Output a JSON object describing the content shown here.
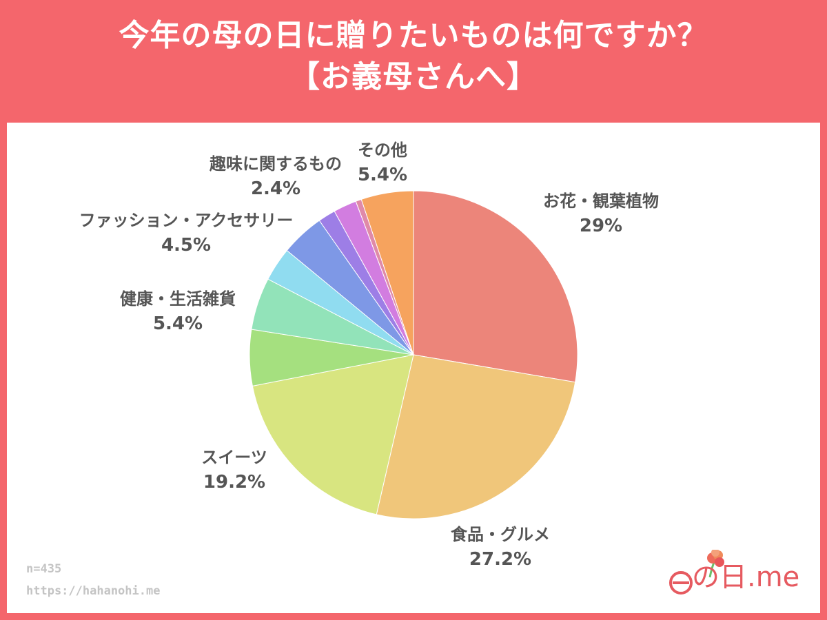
{
  "title_line1": "今年の母の日に贈りたいものは何ですか？",
  "title_line2": "【お義母さんへ】",
  "footer": {
    "n": "n=435",
    "url": "https://hahanohi.me"
  },
  "logo": {
    "text": "の日.me"
  },
  "colors": {
    "frame": "#f4666c",
    "panel": "#ffffff",
    "label": "#555555",
    "footer": "#c4c4c4",
    "logo": "#e65a60"
  },
  "chart_data": {
    "type": "pie",
    "slices": [
      {
        "label": "お花・観葉植物",
        "value_label": "29%",
        "value": 29,
        "color": "#ec857a"
      },
      {
        "label": "食品・グルメ",
        "value_label": "27.2%",
        "value": 27.2,
        "color": "#f0c67a"
      },
      {
        "label": "スイーツ",
        "value_label": "19.2%",
        "value": 19.2,
        "color": "#d8e580"
      },
      {
        "label": "",
        "value_label": "",
        "value": 5.8,
        "color": "#a5e07f"
      },
      {
        "label": "健康・生活雑貨",
        "value_label": "5.4%",
        "value": 5.4,
        "color": "#92e3b9"
      },
      {
        "label": "",
        "value_label": "",
        "value": 3.5,
        "color": "#90dcf0"
      },
      {
        "label": "ファッション・アクセサリー",
        "value_label": "4.5%",
        "value": 4.5,
        "color": "#7e98e6"
      },
      {
        "label": "",
        "value_label": "",
        "value": 1.8,
        "color": "#9d7ee6"
      },
      {
        "label": "趣味に関するもの",
        "value_label": "2.4%",
        "value": 2.4,
        "color": "#d27de0"
      },
      {
        "label": "",
        "value_label": "",
        "value": 0.6,
        "color": "#e08aa8"
      },
      {
        "label": "その他",
        "value_label": "5.4%",
        "value": 5.4,
        "color": "#f6a35e"
      }
    ]
  }
}
